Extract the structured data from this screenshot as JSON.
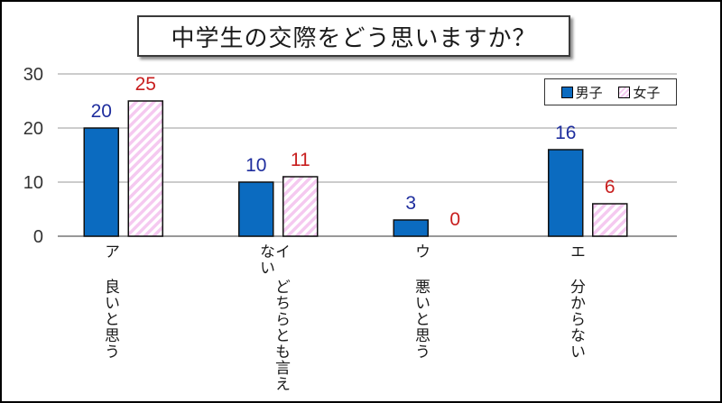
{
  "chart_data": {
    "type": "bar",
    "title": "中学生の交際をどう思いますか？",
    "categories": [
      "ア 良いと思う",
      "イ どちらとも言えない",
      "ウ 悪いと思う",
      "エ 分からない"
    ],
    "series": [
      {
        "name": "男子",
        "values": [
          20,
          10,
          3,
          16
        ],
        "color": "#0b6bc0",
        "label_color": "#1f2e9e"
      },
      {
        "name": "女子",
        "values": [
          25,
          11,
          0,
          6
        ],
        "color": "#f5c9f0",
        "label_color": "#c81e1e"
      }
    ],
    "yticks": [
      0,
      10,
      20,
      30
    ],
    "ylim": [
      0,
      30
    ],
    "grid": true,
    "legend_position": "top-right"
  }
}
